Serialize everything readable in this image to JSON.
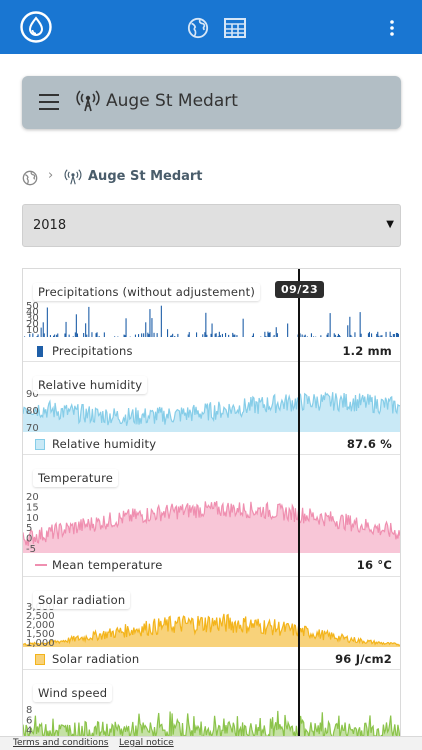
{
  "colors": {
    "appbar": "#1976d2",
    "precip": "#1f5fa8",
    "humidity": "#86cde8",
    "temperature": "#ef8fb0",
    "solar": "#f3b41b",
    "wind": "#8bc34a"
  },
  "appbar": {
    "logo_icon": "water-drop-logo-icon",
    "globe_icon": "globe-icon",
    "table_icon": "table-grid-icon",
    "more_icon": "more-vert-icon"
  },
  "station": {
    "title": "Auge St Medart",
    "menu_icon": "hamburger-menu-icon",
    "antenna_icon": "antenna-icon"
  },
  "breadcrumb": {
    "station": "Auge St Medart"
  },
  "year_select": {
    "value": "2018"
  },
  "cursor_date": "09/23",
  "chart_data": [
    {
      "type": "bar",
      "title": "Precipitations (without adjustement)",
      "series": [
        {
          "name": "Precipitations"
        }
      ],
      "y_ticks": [
        "50",
        "40",
        "30",
        "20",
        "10"
      ],
      "cursor_value": "1.2 mm"
    },
    {
      "type": "area",
      "title": "Relative humidity",
      "series": [
        {
          "name": "Relative humidity"
        }
      ],
      "y_ticks": [
        "90",
        "80",
        "70"
      ],
      "cursor_value": "87.6 %"
    },
    {
      "type": "area",
      "title": "Temperature",
      "series": [
        {
          "name": "Mean temperature"
        }
      ],
      "y_ticks": [
        "20",
        "15",
        "10",
        "5",
        "0",
        "-5"
      ],
      "cursor_value": "16 °C"
    },
    {
      "type": "area",
      "title": "Solar radiation",
      "series": [
        {
          "name": "Solar radiation"
        }
      ],
      "y_ticks": [
        "3,000",
        "2,500",
        "2,000",
        "1,500",
        "1,000"
      ],
      "cursor_value": "96 J/cm2"
    },
    {
      "type": "area",
      "title": "Wind speed",
      "series": [
        {
          "name": "Wind speed"
        }
      ],
      "y_ticks": [
        "8",
        "6",
        "4",
        "2"
      ]
    }
  ],
  "footer": {
    "terms": "Terms and conditions",
    "legal": "Legal notice"
  }
}
